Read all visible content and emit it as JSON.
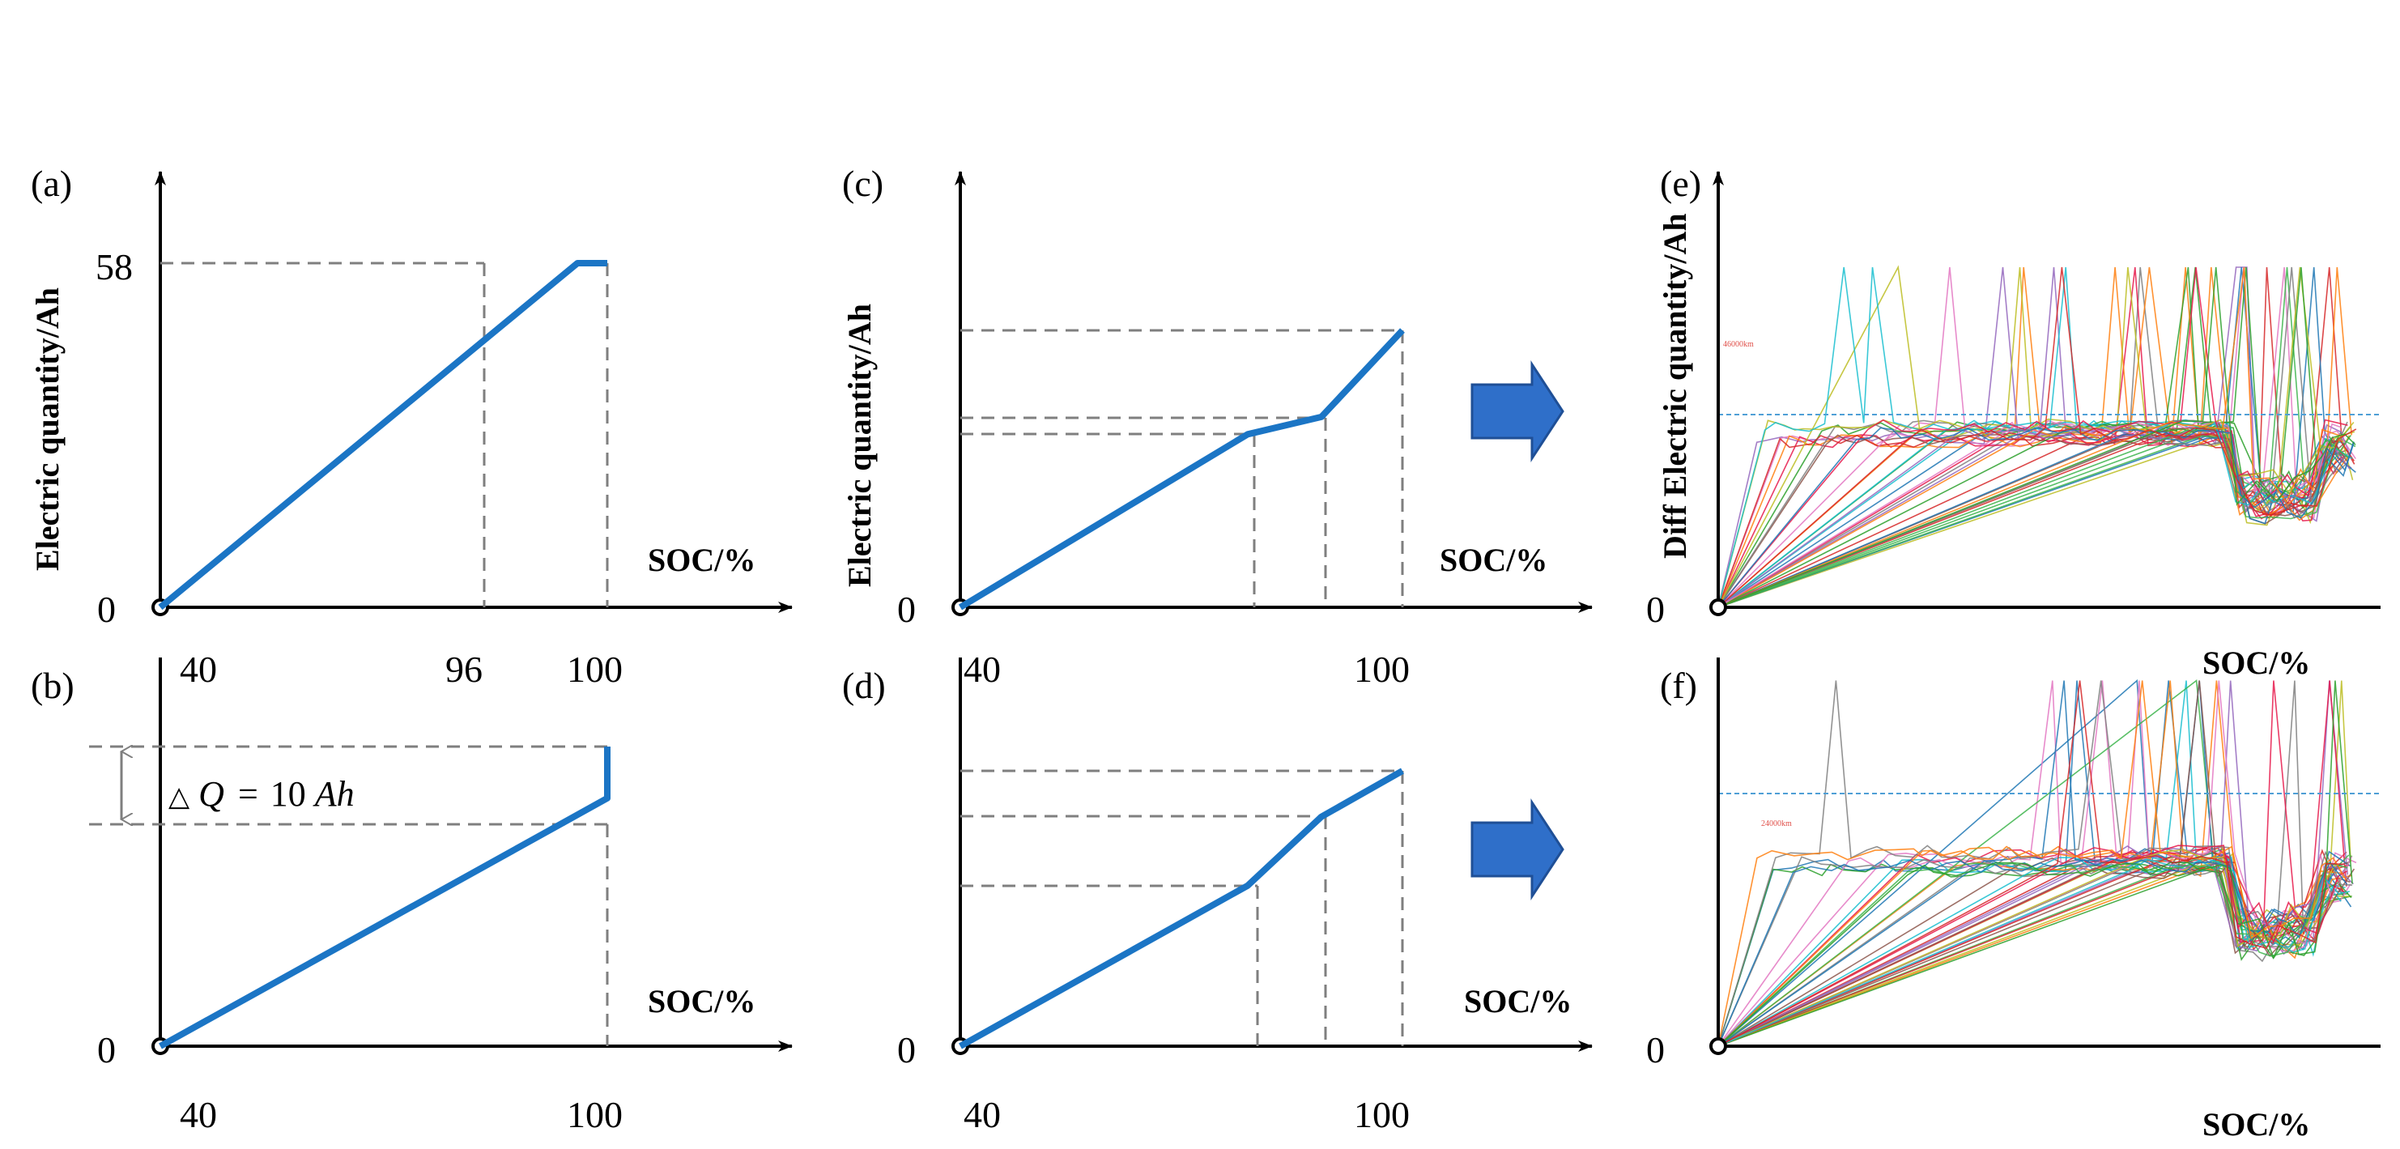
{
  "colors": {
    "axis": "#000000",
    "curve": "#1b75c5",
    "guide": "#7f7f7f",
    "arrow": "#2f6fc9",
    "arrow_edge": "#1f4f96",
    "threshold": "#4f9fd6",
    "note": "#e0504a"
  },
  "arrows": [
    {
      "icon": "right-arrow-icon",
      "from": "c",
      "to": "e"
    },
    {
      "icon": "right-arrow-icon",
      "from": "d",
      "to": "f"
    }
  ],
  "chart_data": [
    {
      "id": "a",
      "panel_label": "(a)",
      "type": "line",
      "ylabel": "Electric quantity/Ah",
      "xlabel": "SOC/%",
      "x_tick_labels": [
        "40",
        "96",
        "100"
      ],
      "y_tick_labels": [
        "0",
        "58"
      ],
      "series": [
        {
          "name": "charge curve",
          "points": [
            [
              40,
              0
            ],
            [
              96,
              58
            ],
            [
              100,
              58
            ]
          ]
        }
      ],
      "reference_lines": [
        {
          "x": 96
        },
        {
          "x": 100
        },
        {
          "y": 58
        }
      ]
    },
    {
      "id": "b",
      "panel_label": "(b)",
      "type": "line",
      "xlabel": "SOC/%",
      "x_tick_labels": [
        "40",
        "100"
      ],
      "y_tick_labels": [
        "0"
      ],
      "annotation": {
        "delta": "△",
        "quantity": "Q",
        "equals": "=",
        "value": "10",
        "unit": "Ah"
      },
      "series": [
        {
          "name": "charge curve",
          "points": [
            [
              40,
              0
            ],
            [
              100,
              48
            ],
            [
              100,
              58
            ]
          ]
        }
      ],
      "reference_lines": [
        {
          "x": 100
        },
        {
          "y": 48
        },
        {
          "y": 58
        }
      ]
    },
    {
      "id": "c",
      "panel_label": "(c)",
      "type": "line",
      "ylabel": "Electric quantity/Ah",
      "xlabel": "SOC/%",
      "x_tick_labels": [
        "40",
        "100"
      ],
      "y_tick_labels": [
        "0"
      ],
      "series": [
        {
          "name": "charge curve",
          "points": [
            [
              40,
              0
            ],
            [
              79,
              30
            ],
            [
              89,
              33
            ],
            [
              100,
              48
            ]
          ]
        }
      ],
      "reference_lines": [
        {
          "x": 79
        },
        {
          "x": 89
        },
        {
          "x": 100
        },
        {
          "y": 30
        },
        {
          "y": 33
        },
        {
          "y": 48
        }
      ]
    },
    {
      "id": "d",
      "panel_label": "(d)",
      "type": "line",
      "xlabel": "SOC/%",
      "x_tick_labels": [
        "40",
        "100"
      ],
      "y_tick_labels": [
        "0"
      ],
      "series": [
        {
          "name": "charge curve",
          "points": [
            [
              40,
              0
            ],
            [
              79,
              28
            ],
            [
              89,
              40
            ],
            [
              100,
              48
            ]
          ]
        }
      ],
      "reference_lines": [
        {
          "x": 79
        },
        {
          "x": 89
        },
        {
          "x": 100
        },
        {
          "y": 28
        },
        {
          "y": 40
        },
        {
          "y": 48
        }
      ]
    },
    {
      "id": "e",
      "panel_label": "(e)",
      "type": "line",
      "ylabel": "Diff Electric quantity/Ah",
      "xlabel": "SOC/%",
      "y_tick_labels": [
        "0"
      ],
      "threshold_label": "46000km",
      "series_count": 40,
      "data_note": "Dense multi-vehicle traces; each series rises from the origin to a plateau near the dashed threshold, with spikes and a dip near the right end.",
      "threshold_level": 0.62,
      "plateau_level": 0.54
    },
    {
      "id": "f",
      "panel_label": "(f)",
      "type": "line",
      "xlabel": "SOC/%",
      "y_tick_labels": [
        "0"
      ],
      "threshold_label": "24000km",
      "series_count": 40,
      "data_note": "Dense multi-vehicle traces; series plateau below the dashed threshold, peak near the right end and then drop.",
      "threshold_level": 0.63,
      "plateau_level": 0.53
    }
  ]
}
